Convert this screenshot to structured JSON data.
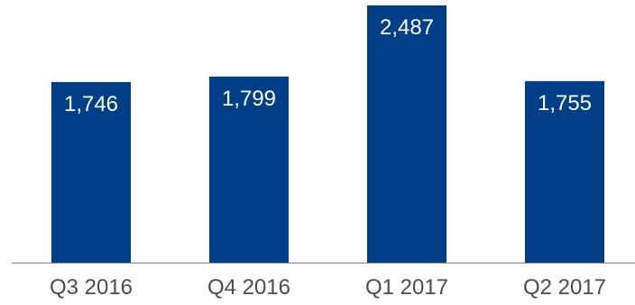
{
  "chart_data": {
    "type": "bar",
    "categories": [
      "Q3 2016",
      "Q4 2016",
      "Q1 2017",
      "Q2 2017"
    ],
    "values": [
      1746,
      1799,
      2487,
      1755
    ],
    "value_labels": [
      "1,746",
      "1,799",
      "2,487",
      "1,755"
    ],
    "title": "",
    "xlabel": "",
    "ylabel": "",
    "ylim": [
      0,
      2487
    ],
    "grid": false,
    "legend": "none",
    "colors": {
      "bar": "#003f87",
      "bar_label": "#ffffff",
      "axis": "#7f7f7f",
      "tick_label": "#4d4d4d"
    }
  }
}
